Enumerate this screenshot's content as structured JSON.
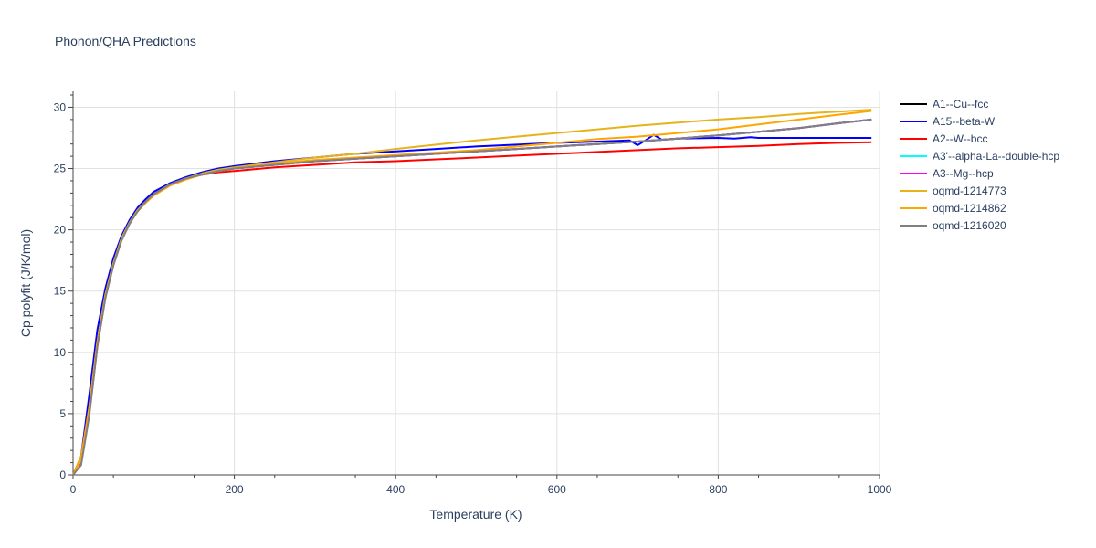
{
  "chart_data": {
    "type": "line",
    "title": "Phonon/QHA Predictions",
    "xlabel": "Temperature (K)",
    "ylabel": "Cp polyfit (J/K/mol)",
    "xlim": [
      0,
      1000
    ],
    "ylim": [
      0,
      31.3
    ],
    "xticks": [
      0,
      200,
      400,
      600,
      800,
      1000
    ],
    "yticks": [
      0,
      5,
      10,
      15,
      20,
      25,
      30
    ],
    "grid": true,
    "legend_position": "top-right",
    "series": [
      {
        "name": "A1--Cu--fcc",
        "color": "#000000",
        "x": [
          0,
          10,
          20,
          30,
          40,
          50,
          60,
          70,
          80,
          90,
          100,
          120,
          140,
          160,
          180,
          200,
          250,
          300,
          350,
          400,
          450,
          500,
          550,
          600,
          650,
          700,
          750,
          800,
          850,
          900,
          950,
          990
        ],
        "y": [
          0,
          1.0,
          5.0,
          10.5,
          14.5,
          17.2,
          19.2,
          20.5,
          21.6,
          22.3,
          22.9,
          23.7,
          24.2,
          24.5,
          24.8,
          25.0,
          25.3,
          25.6,
          25.8,
          26.0,
          26.2,
          26.4,
          26.6,
          26.8,
          27.0,
          27.2,
          27.45,
          27.7,
          28.0,
          28.3,
          28.7,
          29.0
        ]
      },
      {
        "name": "A15--beta-W",
        "color": "#0000ff",
        "x": [
          0,
          10,
          20,
          30,
          40,
          50,
          60,
          70,
          80,
          90,
          100,
          120,
          140,
          160,
          180,
          200,
          250,
          300,
          350,
          400,
          450,
          500,
          550,
          600,
          650,
          690,
          700,
          710,
          720,
          730,
          750,
          800,
          820,
          840,
          850,
          900,
          950,
          990
        ],
        "y": [
          0,
          1.5,
          6.5,
          11.8,
          15.2,
          17.7,
          19.5,
          20.8,
          21.8,
          22.5,
          23.1,
          23.8,
          24.3,
          24.7,
          25.0,
          25.2,
          25.6,
          25.9,
          26.2,
          26.4,
          26.6,
          26.8,
          26.95,
          27.1,
          27.2,
          27.3,
          26.9,
          27.3,
          27.75,
          27.35,
          27.45,
          27.5,
          27.45,
          27.55,
          27.5,
          27.5,
          27.5,
          27.5
        ]
      },
      {
        "name": "A2--W--bcc",
        "color": "#ff0000",
        "x": [
          0,
          10,
          20,
          30,
          40,
          50,
          60,
          70,
          80,
          90,
          100,
          120,
          140,
          160,
          180,
          200,
          250,
          300,
          350,
          400,
          450,
          500,
          550,
          600,
          650,
          700,
          750,
          800,
          850,
          900,
          950,
          990
        ],
        "y": [
          0,
          1.0,
          5.0,
          10.5,
          14.5,
          17.2,
          19.2,
          20.5,
          21.6,
          22.3,
          22.9,
          23.7,
          24.2,
          24.5,
          24.7,
          24.8,
          25.1,
          25.3,
          25.5,
          25.6,
          25.75,
          25.9,
          26.05,
          26.2,
          26.35,
          26.5,
          26.65,
          26.75,
          26.85,
          27.0,
          27.1,
          27.15
        ]
      },
      {
        "name": "A3'--alpha-La--double-hcp",
        "color": "#00ffff",
        "x": [
          0,
          10,
          20,
          30,
          40,
          50,
          60,
          70,
          80,
          90,
          100,
          120,
          140,
          160,
          180,
          200,
          250,
          300,
          350,
          400,
          450,
          500,
          550,
          600,
          650,
          700,
          750,
          800,
          850,
          900,
          950,
          990
        ],
        "y": [
          0,
          1.0,
          5.0,
          10.5,
          14.5,
          17.2,
          19.2,
          20.5,
          21.6,
          22.3,
          22.9,
          23.7,
          24.2,
          24.5,
          24.8,
          25.0,
          25.3,
          25.6,
          25.8,
          26.0,
          26.2,
          26.4,
          26.6,
          26.8,
          27.0,
          27.2,
          27.45,
          27.7,
          28.0,
          28.3,
          28.7,
          29.0
        ]
      },
      {
        "name": "A3--Mg--hcp",
        "color": "#ff00ff",
        "x": [
          0,
          10,
          20,
          30,
          40,
          50,
          60,
          70,
          80,
          90,
          100,
          120,
          140,
          160,
          180,
          200,
          250,
          300,
          350,
          400,
          450,
          500,
          550,
          600,
          650,
          700,
          750,
          800,
          850,
          900,
          950,
          990
        ],
        "y": [
          0,
          1.0,
          5.0,
          10.5,
          14.5,
          17.2,
          19.2,
          20.5,
          21.6,
          22.3,
          22.9,
          23.7,
          24.2,
          24.5,
          24.8,
          25.0,
          25.3,
          25.6,
          25.8,
          26.0,
          26.2,
          26.4,
          26.6,
          26.8,
          27.0,
          27.2,
          27.45,
          27.7,
          28.0,
          28.3,
          28.7,
          29.0
        ]
      },
      {
        "name": "oqmd-1214773",
        "color": "#e6b31a",
        "x": [
          0,
          10,
          20,
          30,
          40,
          50,
          60,
          70,
          80,
          90,
          100,
          120,
          140,
          160,
          180,
          200,
          250,
          300,
          350,
          400,
          450,
          500,
          550,
          600,
          650,
          700,
          750,
          800,
          850,
          900,
          950,
          990
        ],
        "y": [
          0,
          1.2,
          5.5,
          10.8,
          14.7,
          17.3,
          19.3,
          20.6,
          21.6,
          22.3,
          22.9,
          23.7,
          24.2,
          24.6,
          24.9,
          25.1,
          25.5,
          25.9,
          26.2,
          26.6,
          26.95,
          27.3,
          27.6,
          27.9,
          28.2,
          28.5,
          28.75,
          29.0,
          29.2,
          29.45,
          29.65,
          29.8
        ]
      },
      {
        "name": "oqmd-1214862",
        "color": "#ffa500",
        "x": [
          0,
          10,
          20,
          30,
          40,
          50,
          60,
          70,
          80,
          90,
          100,
          120,
          140,
          160,
          180,
          200,
          250,
          300,
          350,
          400,
          450,
          500,
          550,
          600,
          650,
          700,
          750,
          800,
          850,
          900,
          950,
          990
        ],
        "y": [
          0,
          1.5,
          5.5,
          10.8,
          14.6,
          17.2,
          19.2,
          20.5,
          21.5,
          22.2,
          22.8,
          23.6,
          24.1,
          24.5,
          24.8,
          25.0,
          25.4,
          25.7,
          25.9,
          26.1,
          26.3,
          26.5,
          26.8,
          27.1,
          27.4,
          27.6,
          27.9,
          28.2,
          28.6,
          29.0,
          29.4,
          29.7
        ]
      },
      {
        "name": "oqmd-1216020",
        "color": "#808080",
        "x": [
          0,
          10,
          20,
          30,
          40,
          50,
          60,
          70,
          80,
          90,
          100,
          120,
          140,
          160,
          180,
          200,
          250,
          300,
          350,
          400,
          450,
          500,
          550,
          600,
          650,
          700,
          750,
          800,
          850,
          900,
          950,
          990
        ],
        "y": [
          0,
          0.8,
          4.8,
          10.4,
          14.4,
          17.1,
          19.1,
          20.5,
          21.5,
          22.3,
          22.9,
          23.7,
          24.2,
          24.5,
          24.8,
          25.0,
          25.3,
          25.6,
          25.8,
          26.0,
          26.2,
          26.4,
          26.6,
          26.8,
          27.0,
          27.2,
          27.45,
          27.7,
          28.0,
          28.3,
          28.7,
          29.0
        ]
      }
    ]
  }
}
